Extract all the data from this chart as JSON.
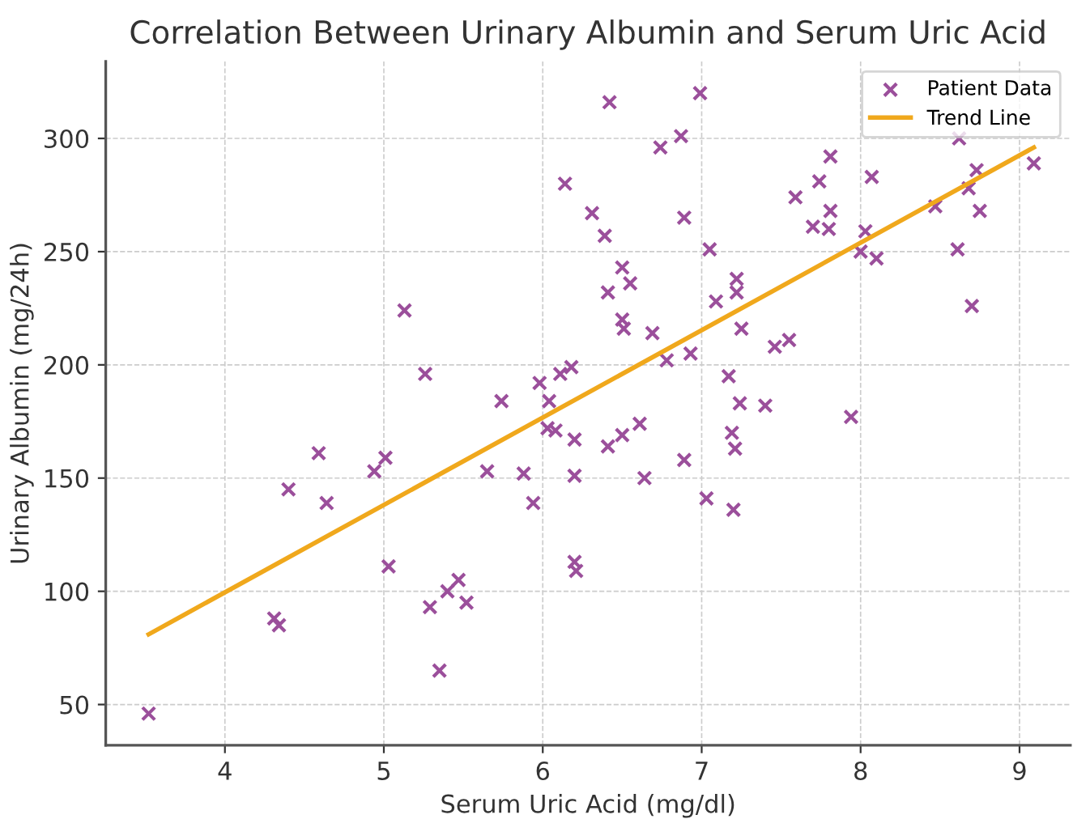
{
  "chart_data": {
    "type": "scatter",
    "title": "Correlation Between Urinary Albumin and Serum Uric Acid",
    "xlabel": "Serum Uric Acid (mg/dl)",
    "ylabel": "Urinary Albumin (mg/24h)",
    "xlim": [
      3.25,
      9.32
    ],
    "ylim": [
      32,
      334
    ],
    "xticks": [
      4,
      5,
      6,
      7,
      8,
      9
    ],
    "yticks": [
      50,
      100,
      150,
      200,
      250,
      300
    ],
    "grid": true,
    "legend": "top right",
    "series": [
      {
        "name": "Patient Data",
        "marker": "cross",
        "color": "#9b4f9b",
        "x": [
          3.52,
          4.31,
          4.34,
          4.4,
          4.59,
          4.64,
          4.94,
          5.01,
          5.03,
          5.13,
          5.26,
          5.29,
          5.35,
          5.4,
          5.47,
          5.52,
          5.65,
          5.74,
          5.88,
          5.94,
          5.98,
          6.03,
          6.04,
          6.08,
          6.11,
          6.14,
          6.18,
          6.2,
          6.2,
          6.2,
          6.21,
          6.31,
          6.39,
          6.41,
          6.41,
          6.42,
          6.5,
          6.5,
          6.51,
          6.55,
          6.5,
          6.61,
          6.64,
          6.69,
          6.74,
          6.78,
          6.87,
          6.89,
          6.89,
          6.93,
          6.99,
          7.03,
          7.05,
          7.09,
          7.17,
          7.19,
          7.2,
          7.21,
          7.22,
          7.22,
          7.24,
          7.25,
          7.4,
          7.46,
          7.55,
          7.59,
          7.7,
          7.74,
          7.8,
          7.81,
          7.81,
          7.94,
          8.0,
          8.03,
          8.07,
          8.1,
          8.47,
          8.61,
          8.62,
          8.68,
          8.7,
          8.73,
          8.75,
          9.09
        ],
        "values": [
          46,
          88,
          85,
          145,
          161,
          139,
          153,
          159,
          111,
          224,
          196,
          93,
          65,
          100,
          105,
          95,
          153,
          184,
          152,
          139,
          192,
          172,
          184,
          171,
          196,
          280,
          199,
          167,
          151,
          113,
          109,
          267,
          257,
          232,
          164,
          316,
          243,
          220,
          216,
          236,
          169,
          174,
          150,
          214,
          296,
          202,
          301,
          265,
          158,
          205,
          320,
          141,
          251,
          228,
          195,
          170,
          136,
          163,
          238,
          232,
          183,
          216,
          182,
          208,
          211,
          274,
          261,
          281,
          260,
          268,
          292,
          177,
          250,
          259,
          283,
          247,
          270,
          251,
          300,
          278,
          226,
          286,
          268,
          289
        ]
      },
      {
        "name": "Trend Line",
        "type": "line",
        "line_style": "solid",
        "color": "#f0a81c",
        "x": [
          3.52,
          9.09
        ],
        "values": [
          81,
          296
        ]
      }
    ]
  }
}
